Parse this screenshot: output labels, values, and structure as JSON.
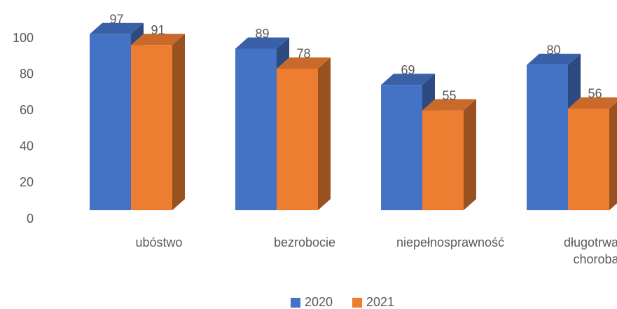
{
  "chart_data": {
    "type": "bar3d",
    "categories": [
      "ubóstwo",
      "bezrobocie",
      "niepełnosprawność",
      "długotrwała choroba"
    ],
    "series": [
      {
        "name": "2020",
        "color": "#4472c4",
        "values": [
          97,
          89,
          69,
          80
        ]
      },
      {
        "name": "2021",
        "color": "#ed7d31",
        "values": [
          91,
          78,
          55,
          56
        ]
      }
    ],
    "ylim": [
      0,
      100
    ],
    "yticks": [
      0,
      20,
      40,
      60,
      80,
      100
    ],
    "grid": false,
    "legend": "bottom"
  }
}
